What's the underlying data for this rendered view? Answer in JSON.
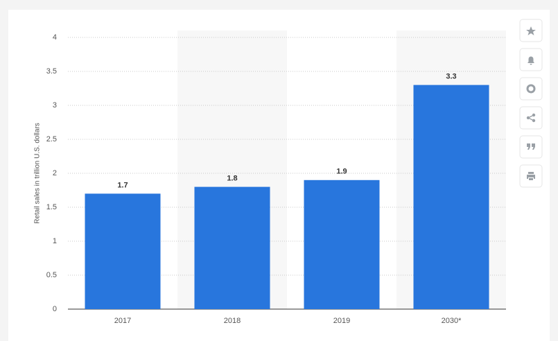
{
  "chart_data": {
    "type": "bar",
    "y_label": "Retail sales in trillion U.S. dollars",
    "categories": [
      "2017",
      "2018",
      "2019",
      "2030*"
    ],
    "values": [
      1.7,
      1.8,
      1.9,
      3.3
    ],
    "color": "#2876dd",
    "ylim": [
      0,
      4
    ],
    "yticks": [
      0,
      0.5,
      1,
      1.5,
      2,
      2.5,
      3,
      3.5,
      4
    ],
    "grid": true
  }
}
